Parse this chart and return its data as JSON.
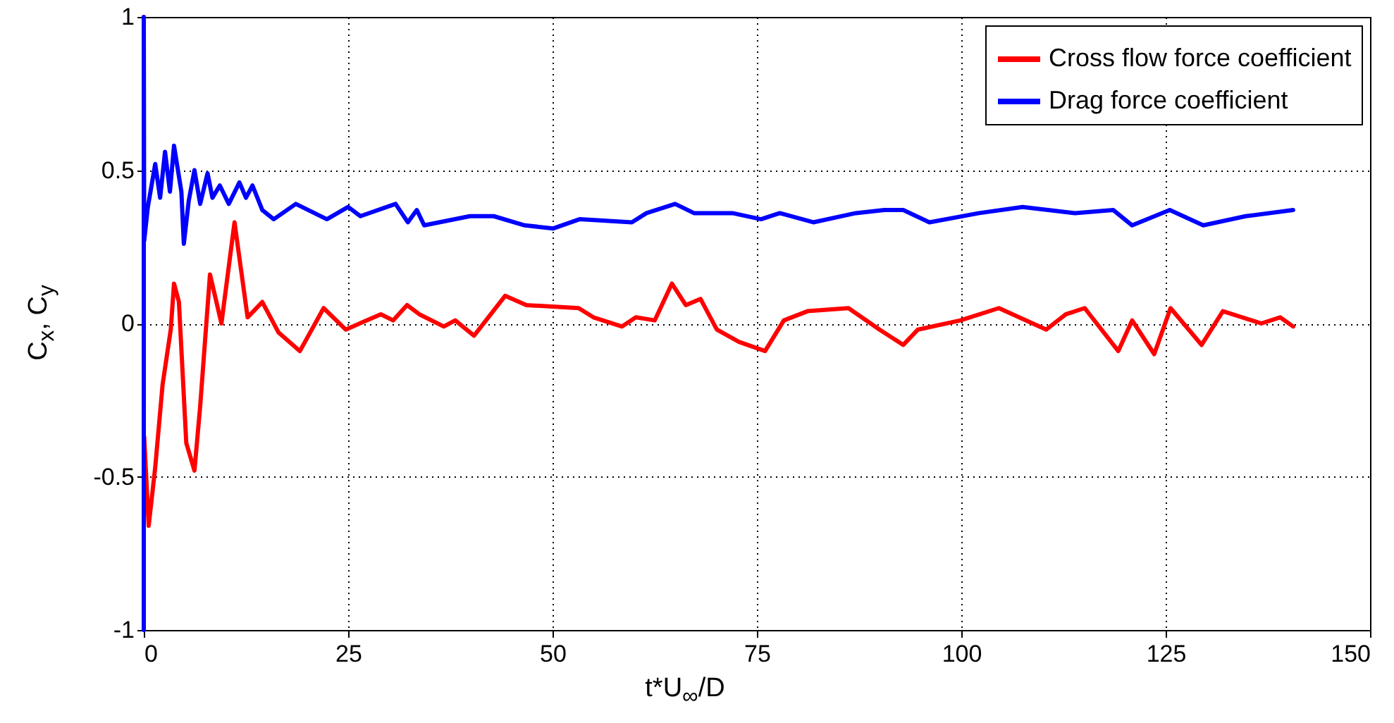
{
  "chart_data": {
    "type": "line",
    "xlabel": "t*U$_{∞}$/D",
    "ylabel": "C$_{x}$, C$_{y}$",
    "xlim": [
      0,
      150
    ],
    "xticks": [
      0,
      25,
      50,
      75,
      100,
      125,
      150
    ],
    "ylim": [
      -1,
      1
    ],
    "yticks": [
      -1,
      -0.5,
      0,
      0.5,
      1
    ],
    "grid": true,
    "legend": "top right",
    "line_style": "solid",
    "series": [
      {
        "name": "Cross flow force coefficient",
        "color": "#ff0000",
        "x": [
          0.05,
          0.6,
          1.4,
          2.3,
          3.3,
          3.7,
          4.3,
          5.2,
          6.2,
          6.9,
          8.1,
          9.5,
          11.1,
          12.7,
          14.5,
          16.5,
          19.1,
          22,
          24.7,
          29,
          30.5,
          32.2,
          33.7,
          36.7,
          38.1,
          40.4,
          44.2,
          46.8,
          53.2,
          55,
          58.5,
          60.2,
          62.5,
          64.6,
          66.3,
          68.1,
          70.1,
          72.8,
          76,
          78.3,
          81.2,
          86.2,
          90,
          92.9,
          94.7,
          99.9,
          104.6,
          110.4,
          112.8,
          115.1,
          119.2,
          120.9,
          123.6,
          125.6,
          129.4,
          132,
          136.7,
          139,
          140.6
        ],
        "values": [
          -0.37,
          -0.66,
          -0.47,
          -0.2,
          -0.02,
          0.13,
          0.07,
          -0.39,
          -0.48,
          -0.27,
          0.16,
          0.0,
          0.33,
          0.02,
          0.07,
          -0.03,
          -0.09,
          0.05,
          -0.02,
          0.03,
          0.01,
          0.06,
          0.03,
          -0.01,
          0.01,
          -0.04,
          0.09,
          0.06,
          0.05,
          0.02,
          -0.01,
          0.02,
          0.01,
          0.13,
          0.06,
          0.08,
          -0.02,
          -0.06,
          -0.09,
          0.01,
          0.04,
          0.05,
          -0.02,
          -0.07,
          -0.02,
          0.01,
          0.05,
          -0.02,
          0.03,
          0.05,
          -0.09,
          0.01,
          -0.1,
          0.05,
          -0.07,
          0.04,
          0.0,
          0.02,
          -0.01
        ]
      },
      {
        "name": "Drag force coefficient",
        "color": "#0000ff",
        "x": [
          0,
          0,
          0.05,
          0.5,
          1.4,
          2,
          2.6,
          3.2,
          3.7,
          4.6,
          4.9,
          5.5,
          6.2,
          6.9,
          7.8,
          8.4,
          9.3,
          10.4,
          11.7,
          12.5,
          13.3,
          14.5,
          15.9,
          18.6,
          22.4,
          25,
          26.5,
          30.8,
          32.3,
          33.4,
          34.3,
          39.9,
          42.8,
          46.6,
          50.1,
          53.3,
          59.7,
          61.5,
          65,
          67.3,
          72,
          75.5,
          77.8,
          81.9,
          87.1,
          90.6,
          92.9,
          96.1,
          102.2,
          107.5,
          113.9,
          118.6,
          120.9,
          125.5,
          129.6,
          134.8,
          140.6
        ],
        "values": [
          -1,
          1,
          0.27,
          0.38,
          0.52,
          0.41,
          0.56,
          0.43,
          0.58,
          0.43,
          0.26,
          0.4,
          0.5,
          0.39,
          0.49,
          0.41,
          0.45,
          0.39,
          0.46,
          0.41,
          0.45,
          0.37,
          0.34,
          0.39,
          0.34,
          0.38,
          0.35,
          0.39,
          0.33,
          0.37,
          0.32,
          0.35,
          0.35,
          0.32,
          0.31,
          0.34,
          0.33,
          0.36,
          0.39,
          0.36,
          0.36,
          0.34,
          0.36,
          0.33,
          0.36,
          0.37,
          0.37,
          0.33,
          0.36,
          0.38,
          0.36,
          0.37,
          0.32,
          0.37,
          0.32,
          0.35,
          0.37
        ]
      }
    ]
  }
}
